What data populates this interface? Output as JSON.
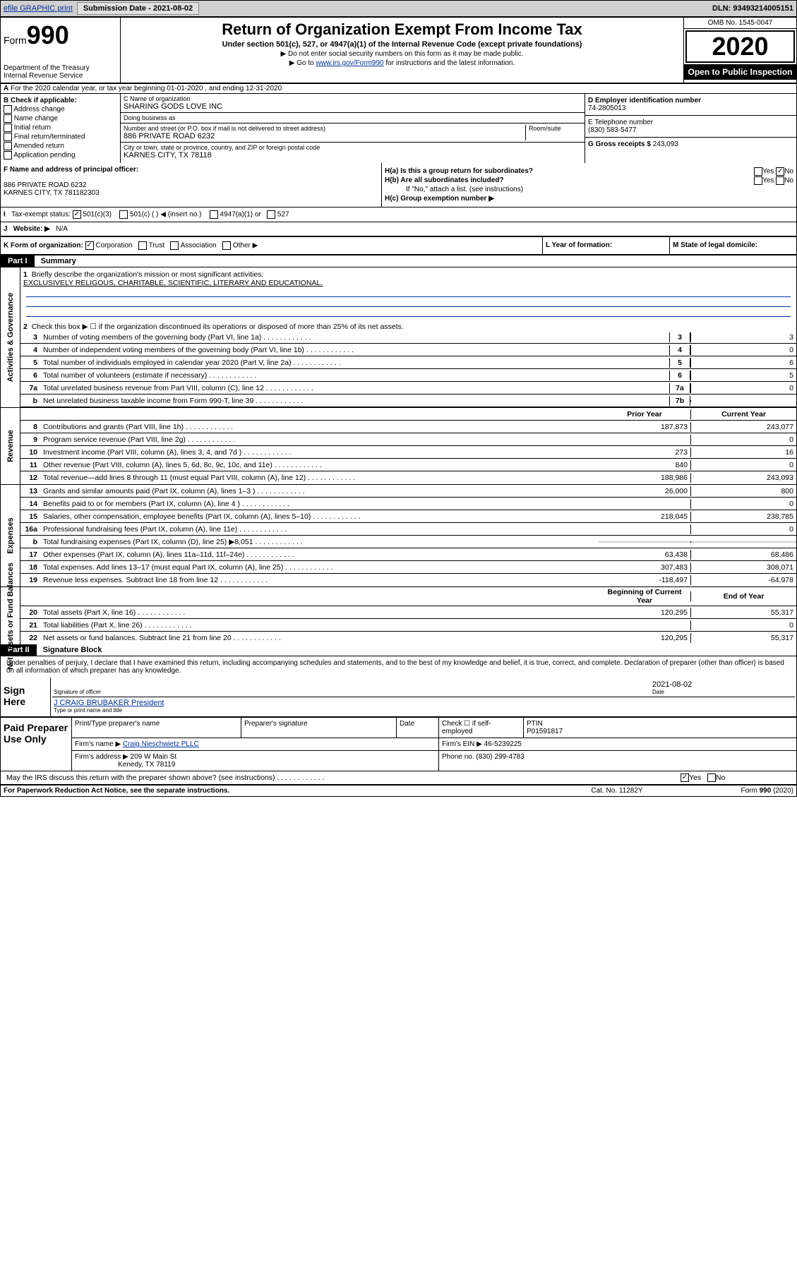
{
  "topbar": {
    "efile": "efile GRAPHIC print",
    "submission_label": "Submission Date - ",
    "submission_date": "2021-08-02",
    "dln_label": "DLN: ",
    "dln": "93493214005151"
  },
  "header": {
    "form_label": "Form",
    "form_no": "990",
    "dept": "Department of the Treasury\nInternal Revenue Service",
    "title": "Return of Organization Exempt From Income Tax",
    "sub1": "Under section 501(c), 527, or 4947(a)(1) of the Internal Revenue Code (except private foundations)",
    "sub2": "▶ Do not enter social security numbers on this form as it may be made public.",
    "sub3_pre": "▶ Go to ",
    "sub3_link": "www.irs.gov/Form990",
    "sub3_post": " for instructions and the latest information.",
    "omb": "OMB No. 1545-0047",
    "year": "2020",
    "otp": "Open to Public Inspection"
  },
  "a": {
    "text": "For the 2020 calendar year, or tax year beginning 01-01-2020    , and ending 12-31-2020"
  },
  "b": {
    "label": "B Check if applicable:",
    "opts": [
      "Address change",
      "Name change",
      "Initial return",
      "Final return/terminated",
      "Amended return",
      "Application pending"
    ],
    "c_name_lbl": "C Name of organization",
    "c_name": "SHARING GODS LOVE INC",
    "dba_lbl": "Doing business as",
    "dba": "",
    "street_lbl": "Number and street (or P.O. box if mail is not delivered to street address)",
    "roomsuite_lbl": "Room/suite",
    "street": "886 PRIVATE ROAD 6232",
    "city_lbl": "City or town, state or province, country, and ZIP or foreign postal code",
    "city": "KARNES CITY, TX   78118",
    "d_lbl": "D Employer identification number",
    "d_ein": "74-2805013",
    "e_lbl": "E Telephone number",
    "e_phone": "(830) 583-5477",
    "g_lbl": "G Gross receipts $ ",
    "g_val": "243,093"
  },
  "f": {
    "lbl": "F  Name and address of principal officer:",
    "name": "",
    "addr1": "886 PRIVATE ROAD 6232",
    "addr2": "KARNES CITY, TX  781182303"
  },
  "h": {
    "ha": "H(a)  Is this a group return for subordinates?",
    "hb": "H(b)  Are all subordinates included?",
    "hb_note": "If \"No,\" attach a list. (see instructions)",
    "hc": "H(c)  Group exemption number ▶",
    "ha_no_checked": true
  },
  "i": {
    "lbl": "Tax-exempt status:",
    "opt1": "501(c)(3)",
    "opt2": "501(c) (  ) ◀ (insert no.)",
    "opt3": "4947(a)(1) or",
    "opt4": "527",
    "checked": "501(c)(3)"
  },
  "j": {
    "lbl": "Website: ▶",
    "val": "N/A"
  },
  "k": {
    "lbl": "K Form of organization:",
    "opts": [
      "Corporation",
      "Trust",
      "Association",
      "Other ▶"
    ],
    "checked": "Corporation"
  },
  "l": {
    "lbl": "L Year of formation:",
    "val": ""
  },
  "m": {
    "lbl": "M State of legal domicile:",
    "val": ""
  },
  "part1": {
    "hdr": "Part I",
    "title": "Summary"
  },
  "summary": {
    "q1": {
      "num": "1",
      "text": "Briefly describe the organization's mission or most significant activities:",
      "val": "EXCLUSIVELY RELIGOUS, CHARITABLE, SCIENTIFIC, LITERARY AND EDUCATIONAL."
    },
    "q2": {
      "num": "2",
      "text": "Check this box ▶ ☐  if the organization discontinued its operations or disposed of more than 25% of its net assets."
    },
    "lines_gov": [
      {
        "num": "3",
        "text": "Number of voting members of the governing body (Part VI, line 1a)",
        "box": "3",
        "v": "3"
      },
      {
        "num": "4",
        "text": "Number of independent voting members of the governing body (Part VI, line 1b)",
        "box": "4",
        "v": "0"
      },
      {
        "num": "5",
        "text": "Total number of individuals employed in calendar year 2020 (Part V, line 2a)",
        "box": "5",
        "v": "6"
      },
      {
        "num": "6",
        "text": "Total number of volunteers (estimate if necessary)",
        "box": "6",
        "v": "5"
      },
      {
        "num": "7a",
        "text": "Total unrelated business revenue from Part VIII, column (C), line 12",
        "box": "7a",
        "v": "0"
      },
      {
        "num": "b",
        "text": "Net unrelated business taxable income from Form 990-T, line 39",
        "box": "7b",
        "v": ""
      }
    ],
    "rev_hdr": {
      "prior": "Prior Year",
      "curr": "Current Year"
    },
    "lines_rev": [
      {
        "num": "8",
        "text": "Contributions and grants (Part VIII, line 1h)",
        "p": "187,873",
        "c": "243,077"
      },
      {
        "num": "9",
        "text": "Program service revenue (Part VIII, line 2g)",
        "p": "",
        "c": "0"
      },
      {
        "num": "10",
        "text": "Investment income (Part VIII, column (A), lines 3, 4, and 7d )",
        "p": "273",
        "c": "16"
      },
      {
        "num": "11",
        "text": "Other revenue (Part VIII, column (A), lines 5, 6d, 8c, 9c, 10c, and 11e)",
        "p": "840",
        "c": "0"
      },
      {
        "num": "12",
        "text": "Total revenue—add lines 8 through 11 (must equal Part VIII, column (A), line 12)",
        "p": "188,986",
        "c": "243,093"
      }
    ],
    "lines_exp": [
      {
        "num": "13",
        "text": "Grants and similar amounts paid (Part IX, column (A), lines 1–3 )",
        "p": "26,000",
        "c": "800"
      },
      {
        "num": "14",
        "text": "Benefits paid to or for members (Part IX, column (A), line 4 )",
        "p": "",
        "c": "0"
      },
      {
        "num": "15",
        "text": "Salaries, other compensation, employee benefits (Part IX, column (A), lines 5–10)",
        "p": "218,045",
        "c": "238,785"
      },
      {
        "num": "16a",
        "text": "Professional fundraising fees (Part IX, column (A), line 11e)",
        "p": "",
        "c": "0"
      },
      {
        "num": "b",
        "text": "Total fundraising expenses (Part IX, column (D), line 25) ▶8,051",
        "p": "grey",
        "c": "grey"
      },
      {
        "num": "17",
        "text": "Other expenses (Part IX, column (A), lines 11a–11d, 11f–24e)",
        "p": "63,438",
        "c": "68,486"
      },
      {
        "num": "18",
        "text": "Total expenses. Add lines 13–17 (must equal Part IX, column (A), line 25)",
        "p": "307,483",
        "c": "308,071"
      },
      {
        "num": "19",
        "text": "Revenue less expenses. Subtract line 18 from line 12",
        "p": "-118,497",
        "c": "-64,978"
      }
    ],
    "net_hdr": {
      "prior": "Beginning of Current Year",
      "curr": "End of Year"
    },
    "lines_net": [
      {
        "num": "20",
        "text": "Total assets (Part X, line 16)",
        "p": "120,295",
        "c": "55,317"
      },
      {
        "num": "21",
        "text": "Total liabilities (Part X, line 26)",
        "p": "",
        "c": "0"
      },
      {
        "num": "22",
        "text": "Net assets or fund balances. Subtract line 21 from line 20",
        "p": "120,295",
        "c": "55,317"
      }
    ],
    "side_labels": {
      "gov": "Activities & Governance",
      "rev": "Revenue",
      "exp": "Expenses",
      "net": "Net Assets or Fund Balances"
    }
  },
  "part2": {
    "hdr": "Part II",
    "title": "Signature Block"
  },
  "sig": {
    "decl": "Under penalties of perjury, I declare that I have examined this return, including accompanying schedules and statements, and to the best of my knowledge and belief, it is true, correct, and complete. Declaration of preparer (other than officer) is based on all information of which preparer has any knowledge.",
    "sign_here": "Sign Here",
    "sig_officer": "Signature of officer",
    "date": "Date",
    "sig_date": "2021-08-02",
    "name": "J CRAIG BRUBAKER President",
    "name_lbl": "Type or print name and title",
    "paid": "Paid Preparer Use Only",
    "pp_name_lbl": "Print/Type preparer's name",
    "pp_sig_lbl": "Preparer's signature",
    "pp_date_lbl": "Date",
    "pp_check": "Check ☐ if self-employed",
    "ptin_lbl": "PTIN",
    "ptin": "P01591817",
    "firm_name_lbl": "Firm's name    ▶",
    "firm_name": "Craig Nieschwietz PLLC",
    "firm_ein_lbl": "Firm's EIN ▶",
    "firm_ein": "46-5239225",
    "firm_addr_lbl": "Firm's address ▶",
    "firm_addr": "209 W Main St",
    "firm_addr2": "Kenedy, TX  78119",
    "firm_phone_lbl": "Phone no.",
    "firm_phone": "(830) 299-4783",
    "discuss": "May the IRS discuss this return with the preparer shown above? (see instructions)",
    "discuss_yes_checked": true
  },
  "footer": {
    "pra": "For Paperwork Reduction Act Notice, see the separate instructions.",
    "cat": "Cat. No. 11282Y",
    "form": "Form 990 (2020)"
  },
  "colors": {
    "link": "#003399",
    "black": "#000000",
    "grey_bg": "#cccccc",
    "topbar_bg": "#d0d0d0"
  }
}
